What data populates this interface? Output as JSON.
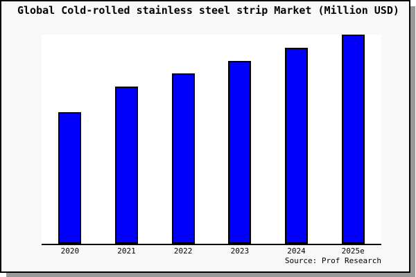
{
  "title": "Global Cold-rolled stainless steel strip Market (Million USD)",
  "source_note": "Source: Prof Research",
  "colors": {
    "bar_fill": "#0000fa",
    "bar_border": "#000000",
    "figure_background": "#f8f8f8",
    "plot_background": "#ffffff",
    "axis_line": "#000000",
    "frame_border": "#000000",
    "drop_shadow": "#9a9a9a",
    "text": "#000000"
  },
  "chart_data": {
    "type": "bar",
    "title": "Global Cold-rolled stainless steel strip Market (Million USD)",
    "categories": [
      "2020",
      "2021",
      "2022",
      "2023",
      "2024",
      "2025e"
    ],
    "values": [
      62.9,
      75.2,
      81.5,
      87.4,
      93.7,
      100
    ],
    "value_scale": "relative height, percent of tallest bar (2025e); chart shows no numeric y-axis",
    "xlabel": "",
    "ylabel": "",
    "ylim": [
      0,
      100
    ],
    "grid": false,
    "legend": false,
    "y_axis_ticks_visible": false,
    "x_axis_line_visible": true,
    "annotation": "Source: Prof Research"
  }
}
